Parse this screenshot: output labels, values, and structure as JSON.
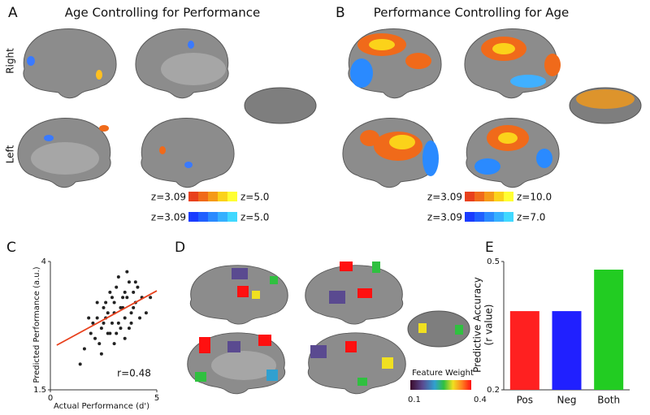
{
  "panels": {
    "a": {
      "letter": "A",
      "title": "Age Controlling for Performance",
      "colorbars": [
        {
          "min": "z=3.09",
          "max": "z=5.0"
        },
        {
          "min": "z=3.09",
          "max": "z=5.0"
        }
      ]
    },
    "b": {
      "letter": "B",
      "title": "Performance Controlling for Age",
      "colorbars": [
        {
          "min": "z=3.09",
          "max": "z=10.0"
        },
        {
          "min": "z=3.09",
          "max": "z=7.0"
        }
      ]
    },
    "c": {
      "letter": "C"
    },
    "d": {
      "letter": "D",
      "legend_title": "Feature Weight",
      "min": "0.1",
      "max": "0.4"
    },
    "e": {
      "letter": "E"
    }
  },
  "row_labels": [
    "Right",
    "Left"
  ],
  "chart_data": [
    {
      "type": "scatter",
      "x_label": "Actual Performance (d')",
      "y_label": "Predicted Performance (a.u.)",
      "annotation": "r=0.48",
      "xlim": [
        0,
        5
      ],
      "ylim": [
        1.5,
        4
      ],
      "xticks": [
        0,
        5
      ],
      "yticks": [
        1.5,
        4
      ],
      "color": "#222222",
      "fit_color": "#e8401c",
      "fit": {
        "x": [
          0.3,
          5
        ],
        "y": [
          2.37,
          3.43
        ]
      },
      "x": [
        2.1,
        2.4,
        2.6,
        2.8,
        3.0,
        3.2,
        3.4,
        3.6,
        3.8,
        4.0,
        2.2,
        2.5,
        2.7,
        2.9,
        3.1,
        3.3,
        3.5,
        3.7,
        3.9,
        4.2,
        1.6,
        1.9,
        2.3,
        2.6,
        2.9,
        3.2,
        3.5,
        3.8,
        4.1,
        4.5,
        2.0,
        2.4,
        2.8,
        3.0,
        3.3,
        3.6,
        3.9,
        4.3,
        1.8,
        2.7,
        3.1,
        3.4,
        3.7,
        2.5,
        3.0,
        3.5,
        4.0,
        4.7,
        1.4,
        2.2
      ],
      "y": [
        2.5,
        2.7,
        2.9,
        2.6,
        3.0,
        2.8,
        3.1,
        3.3,
        3.0,
        3.2,
        2.9,
        3.1,
        2.6,
        3.3,
        3.5,
        2.7,
        2.9,
        3.6,
        3.4,
        2.9,
        2.3,
        2.6,
        2.4,
        3.2,
        2.8,
        3.7,
        3.4,
        2.8,
        3.5,
        3.0,
        2.8,
        2.2,
        3.4,
        2.4,
        3.1,
        3.8,
        3.1,
        3.3,
        2.9,
        3.0,
        2.6,
        3.3,
        2.7,
        2.8,
        3.2,
        2.5,
        3.6,
        3.3,
        2.0,
        3.2
      ]
    },
    {
      "type": "bar",
      "y_label": [
        "Predictive Accuracy",
        "(r value)"
      ],
      "categories": [
        "Pos",
        "Neg",
        "Both"
      ],
      "values": [
        0.384,
        0.384,
        0.481
      ],
      "colors": [
        "#ff2020",
        "#2020ff",
        "#22cc22"
      ],
      "ylim": [
        0.2,
        0.5
      ],
      "yticks": [
        0.2,
        0.5
      ]
    }
  ]
}
